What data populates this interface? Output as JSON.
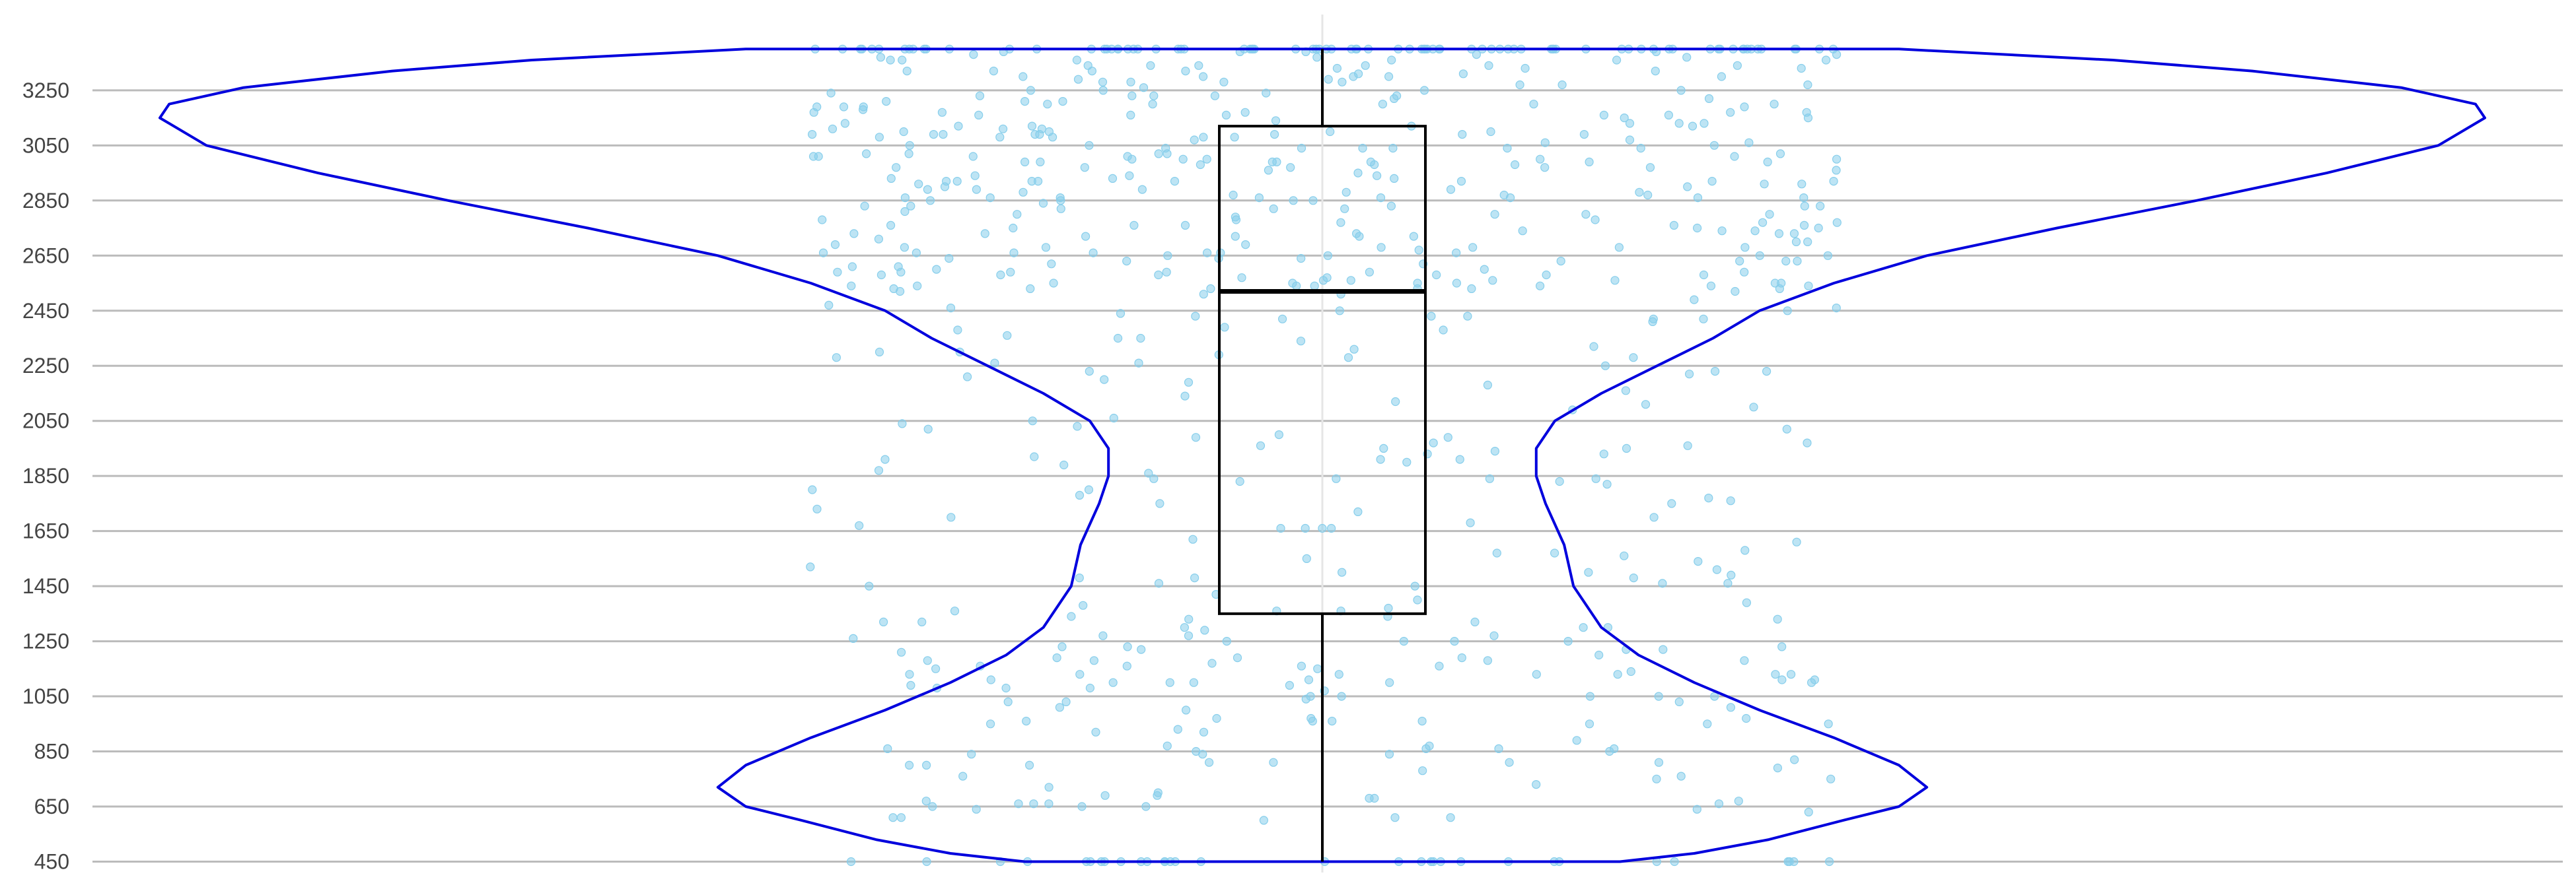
{
  "chart_data": {
    "type": "violin",
    "title": "",
    "xlabel": "",
    "ylabel": "",
    "ylim": [
      420,
      3530
    ],
    "y_ticks": [
      450,
      650,
      850,
      1050,
      1250,
      1450,
      1650,
      1850,
      2050,
      2250,
      2450,
      2650,
      2850,
      3050,
      3250
    ],
    "grid": {
      "horizontal": true
    },
    "colors": {
      "violin": "#0000dd",
      "points": "#87ceeb",
      "box": "#000000",
      "grid": "#bbbbbb",
      "center_line": "#e6e6e6",
      "ticks": "#444444"
    },
    "data_range": [
      450,
      3400
    ],
    "box": {
      "min": 450,
      "q1": 1350,
      "median": 2520,
      "q3": 3120,
      "max": 3400
    },
    "points_count": 700,
    "violin_density": [
      [
        450,
        0.32
      ],
      [
        480,
        0.4
      ],
      [
        530,
        0.48
      ],
      [
        600,
        0.56
      ],
      [
        650,
        0.62
      ],
      [
        720,
        0.65
      ],
      [
        800,
        0.62
      ],
      [
        900,
        0.55
      ],
      [
        1000,
        0.47
      ],
      [
        1100,
        0.4
      ],
      [
        1200,
        0.34
      ],
      [
        1300,
        0.3
      ],
      [
        1450,
        0.27
      ],
      [
        1600,
        0.26
      ],
      [
        1750,
        0.24
      ],
      [
        1850,
        0.23
      ],
      [
        1950,
        0.23
      ],
      [
        2050,
        0.25
      ],
      [
        2150,
        0.3
      ],
      [
        2250,
        0.36
      ],
      [
        2350,
        0.42
      ],
      [
        2450,
        0.47
      ],
      [
        2550,
        0.55
      ],
      [
        2650,
        0.65
      ],
      [
        2750,
        0.79
      ],
      [
        2850,
        0.94
      ],
      [
        2950,
        1.08
      ],
      [
        3050,
        1.2
      ],
      [
        3150,
        1.25
      ],
      [
        3200,
        1.24
      ],
      [
        3260,
        1.16
      ],
      [
        3320,
        1.0
      ],
      [
        3360,
        0.85
      ],
      [
        3400,
        0.62
      ]
    ]
  }
}
